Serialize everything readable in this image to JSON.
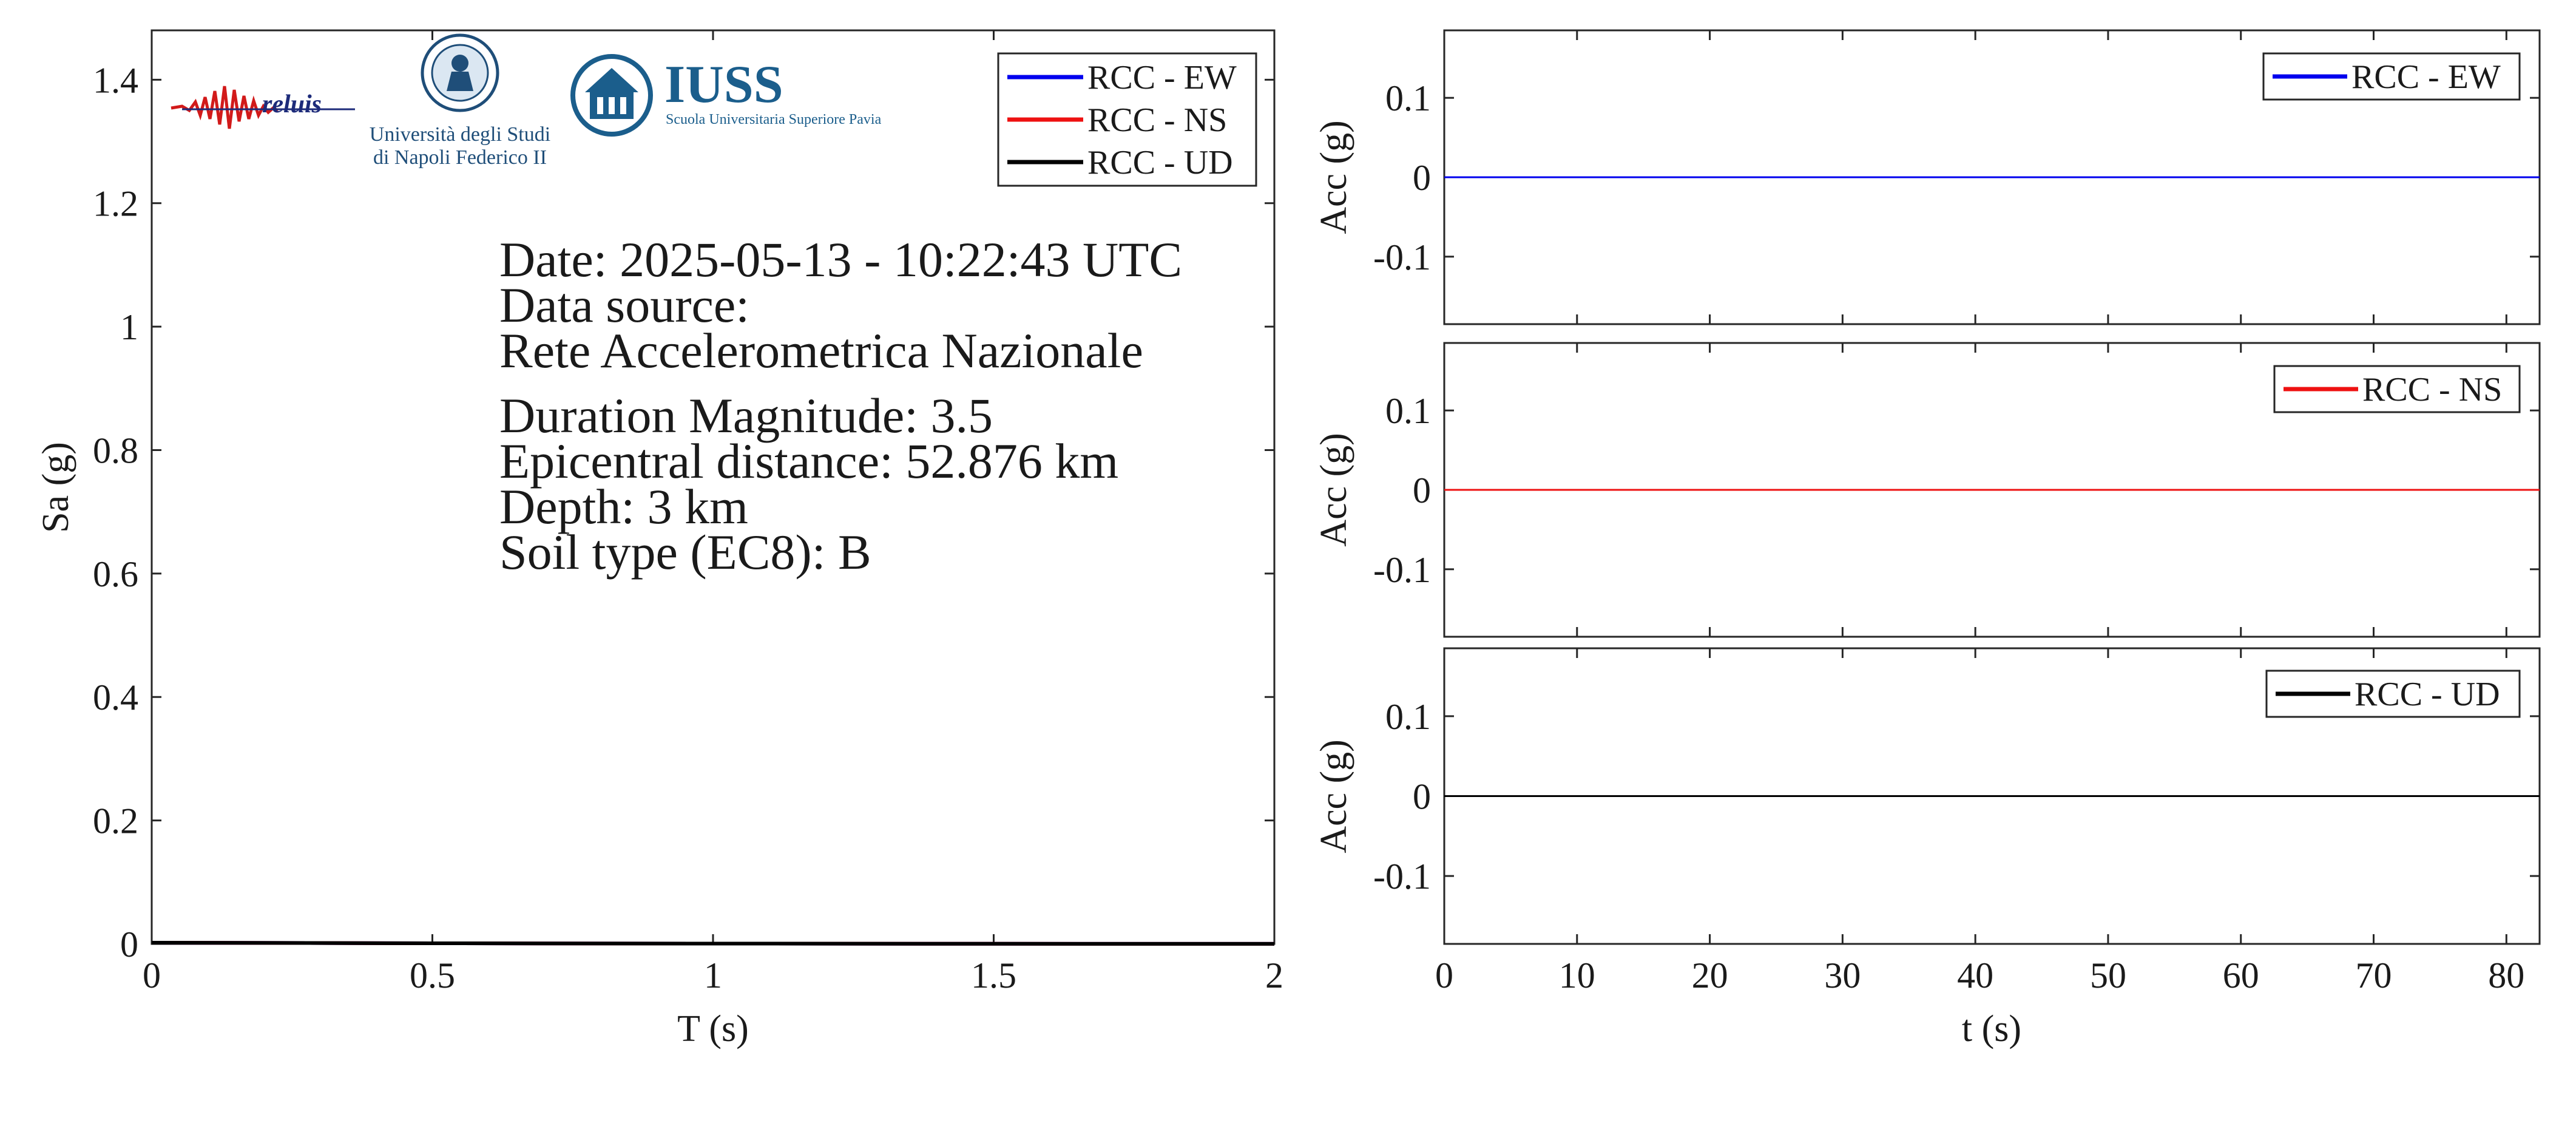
{
  "logos": {
    "reluis": "reluis",
    "unina_line1": "Università degli Studi",
    "unina_line2": "di Napoli Federico II",
    "iuss_title": "IUSS",
    "iuss_subtitle": "Scuola Universitaria Superiore Pavia"
  },
  "info": {
    "date": "Date: 2025-05-13 - 10:22:43 UTC",
    "data_source_label": "Data source:",
    "data_source_value": "Rete Accelerometrica Nazionale",
    "magnitude": "Duration Magnitude: 3.5",
    "distance": "Epicentral distance: 52.876 km",
    "depth": "Depth: 3 km",
    "soil": "Soil type (EC8): B"
  },
  "colors": {
    "ew": "#0000ee",
    "ns": "#ee1111",
    "ud": "#000000"
  },
  "chart_data": [
    {
      "type": "line",
      "xlabel": "T (s)",
      "ylabel": "Sa (g)",
      "xlim": [
        0,
        2
      ],
      "ylim": [
        0,
        1.48
      ],
      "x_ticks": [
        {
          "v": 0,
          "label": "0"
        },
        {
          "v": 0.5,
          "label": "0.5"
        },
        {
          "v": 1,
          "label": "1"
        },
        {
          "v": 1.5,
          "label": "1.5"
        },
        {
          "v": 2,
          "label": "2"
        }
      ],
      "y_ticks": [
        {
          "v": 0,
          "label": "0"
        },
        {
          "v": 0.2,
          "label": "0.2"
        },
        {
          "v": 0.4,
          "label": "0.4"
        },
        {
          "v": 0.6,
          "label": "0.6"
        },
        {
          "v": 0.8,
          "label": "0.8"
        },
        {
          "v": 1,
          "label": "1"
        },
        {
          "v": 1.2,
          "label": "1.2"
        },
        {
          "v": 1.4,
          "label": "1.4"
        }
      ],
      "legend": "top-right",
      "grid": false,
      "series": [
        {
          "name": "RCC - EW",
          "color": "#0000ee",
          "x": [
            0,
            0.5,
            1,
            1.5,
            2
          ],
          "y": [
            0.002,
            0.001,
            0.0005,
            0.0002,
            0.0001
          ]
        },
        {
          "name": "RCC - NS",
          "color": "#ee1111",
          "x": [
            0,
            0.5,
            1,
            1.5,
            2
          ],
          "y": [
            0.002,
            0.001,
            0.0005,
            0.0002,
            0.0001
          ]
        },
        {
          "name": "RCC - UD",
          "color": "#000000",
          "x": [
            0,
            0.5,
            1,
            1.5,
            2
          ],
          "y": [
            0.002,
            0.001,
            0.0005,
            0.0002,
            0.0001
          ]
        }
      ]
    },
    {
      "type": "line",
      "ylabel": "Acc (g)",
      "xlim": [
        0,
        82.5
      ],
      "ylim": [
        -0.185,
        0.185
      ],
      "y_ticks": [
        {
          "v": 0.1,
          "label": "0.1"
        },
        {
          "v": 0,
          "label": "0"
        },
        {
          "v": -0.1,
          "label": "-0.1"
        }
      ],
      "legend": "top-right",
      "grid": false,
      "series": [
        {
          "name": "RCC - EW",
          "color": "#0000ee",
          "x": [
            0,
            82.5
          ],
          "y": [
            0,
            0
          ]
        }
      ]
    },
    {
      "type": "line",
      "ylabel": "Acc (g)",
      "xlim": [
        0,
        82.5
      ],
      "ylim": [
        -0.185,
        0.185
      ],
      "y_ticks": [
        {
          "v": 0.1,
          "label": "0.1"
        },
        {
          "v": 0,
          "label": "0"
        },
        {
          "v": -0.1,
          "label": "-0.1"
        }
      ],
      "legend": "top-right",
      "grid": false,
      "series": [
        {
          "name": "RCC - NS",
          "color": "#ee1111",
          "x": [
            0,
            82.5
          ],
          "y": [
            0,
            0
          ]
        }
      ]
    },
    {
      "type": "line",
      "xlabel": "t (s)",
      "ylabel": "Acc (g)",
      "xlim": [
        0,
        82.5
      ],
      "ylim": [
        -0.185,
        0.185
      ],
      "x_ticks": [
        {
          "v": 0,
          "label": "0"
        },
        {
          "v": 10,
          "label": "10"
        },
        {
          "v": 20,
          "label": "20"
        },
        {
          "v": 30,
          "label": "30"
        },
        {
          "v": 40,
          "label": "40"
        },
        {
          "v": 50,
          "label": "50"
        },
        {
          "v": 60,
          "label": "60"
        },
        {
          "v": 70,
          "label": "70"
        },
        {
          "v": 80,
          "label": "80"
        }
      ],
      "y_ticks": [
        {
          "v": 0.1,
          "label": "0.1"
        },
        {
          "v": 0,
          "label": "0"
        },
        {
          "v": -0.1,
          "label": "-0.1"
        }
      ],
      "legend": "top-right",
      "grid": false,
      "series": [
        {
          "name": "RCC - UD",
          "color": "#000000",
          "x": [
            0,
            82.5
          ],
          "y": [
            0,
            0
          ]
        }
      ]
    }
  ]
}
